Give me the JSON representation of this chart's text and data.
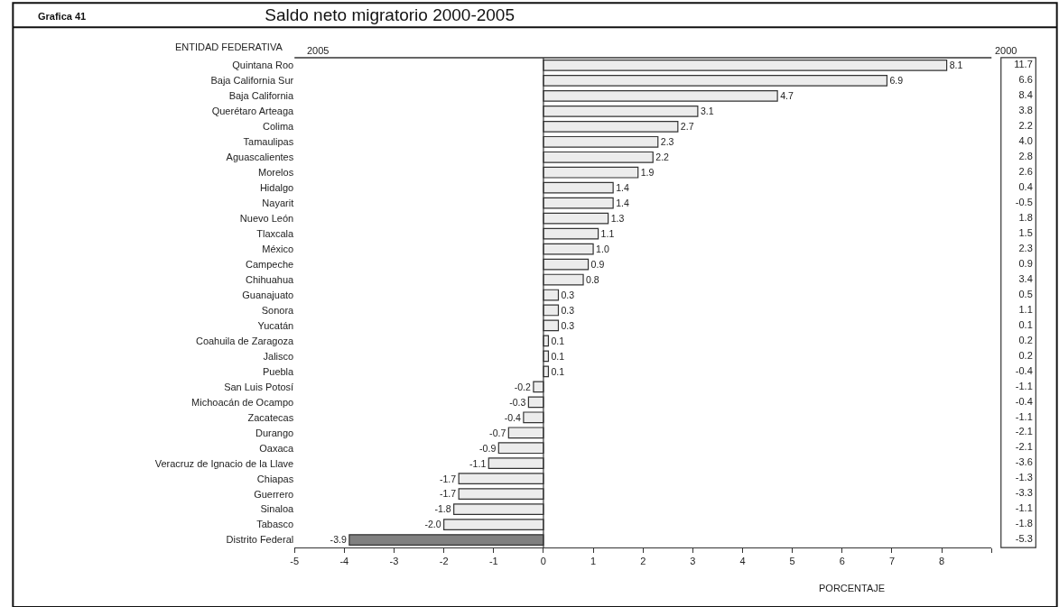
{
  "chart_data": [
    {
      "type": "bar",
      "orientation": "horizontal",
      "title": "Saldo neto migratorio 2000-2005",
      "annotations": [
        "Grafica 41"
      ],
      "ylabel": "ENTIDAD FEDERATIVA",
      "xlabel": "PORCENTAJE",
      "categories": [
        "Quintana Roo",
        "Baja California Sur",
        "Baja California",
        "Querétaro Arteaga",
        "Colima",
        "Tamaulipas",
        "Aguascalientes",
        "Morelos",
        "Hidalgo",
        "Nayarit",
        "Nuevo León",
        "Tlaxcala",
        "México",
        "Campeche",
        "Chihuahua",
        "Guanajuato",
        "Sonora",
        "Yucatán",
        "Coahuila de Zaragoza",
        "Jalisco",
        "Puebla",
        "San Luis Potosí",
        "Michoacán de Ocampo",
        "Zacatecas",
        "Durango",
        "Oaxaca",
        "Veracruz de Ignacio de la Llave",
        "Chiapas",
        "Guerrero",
        "Sinaloa",
        "Tabasco",
        "Distrito Federal"
      ],
      "series": [
        {
          "name": "2005",
          "type": "bar",
          "value_labels": [
            "8.1",
            "6.9",
            "4.7",
            "3.1",
            "2.7",
            "2.3",
            "2.2",
            "1.9",
            "1.4",
            "1.4",
            "1.3",
            "1.1",
            "1.0",
            "0.9",
            "0.8",
            "0.3",
            "0.3",
            "0.3",
            "0.1",
            "0.1",
            "0.1",
            "-0.2",
            "-0.3",
            "-0.4",
            "-0.7",
            "-0.9",
            "-1.1",
            "-1.7",
            "-1.7",
            "-1.8",
            "-2.0",
            "-3.9"
          ],
          "colors": [
            "#ececec",
            "#ececec",
            "#ececec",
            "#ececec",
            "#ececec",
            "#ececec",
            "#ececec",
            "#ececec",
            "#ececec",
            "#ececec",
            "#ececec",
            "#ececec",
            "#ececec",
            "#ececec",
            "#ececec",
            "#ececec",
            "#ececec",
            "#ececec",
            "#ececec",
            "#ececec",
            "#ececec",
            "#ececec",
            "#ececec",
            "#ececec",
            "#ececec",
            "#ececec",
            "#ececec",
            "#ececec",
            "#ececec",
            "#ececec",
            "#ececec",
            "#808080"
          ],
          "values": [
            8.1,
            6.9,
            4.7,
            3.1,
            2.7,
            2.3,
            2.2,
            1.9,
            1.4,
            1.4,
            1.3,
            1.1,
            1.0,
            0.9,
            0.8,
            0.3,
            0.3,
            0.3,
            0.1,
            0.1,
            0.1,
            -0.2,
            -0.3,
            -0.4,
            -0.7,
            -0.9,
            -1.1,
            -1.7,
            -1.7,
            -1.8,
            -2.0,
            -3.9
          ]
        }
      ],
      "xlim": [
        -5,
        9
      ],
      "xticks": [
        -5,
        -4,
        -3,
        -2,
        -1,
        0,
        1,
        2,
        3,
        4,
        5,
        6,
        7,
        8,
        {
          "value": 9,
          "label": null
        }
      ],
      "ref_lines": [
        {
          "axis": "x",
          "value": 0
        }
      ]
    },
    {
      "type": "other",
      "title": "2000",
      "value_labels": [
        "11.7",
        "6.6",
        "8.4",
        "3.8",
        "2.2",
        "4.0",
        "2.8",
        "2.6",
        "0.4",
        "-0.5",
        "1.8",
        "1.5",
        "2.3",
        "0.9",
        "3.4",
        "0.5",
        "1.1",
        "0.1",
        "0.2",
        "0.2",
        "-0.4",
        "-1.1",
        "-0.4",
        "-1.1",
        "-2.1",
        "-2.1",
        "-3.6",
        "-1.3",
        "-3.3",
        "-1.1",
        "-1.8",
        "-5.3"
      ]
    }
  ]
}
